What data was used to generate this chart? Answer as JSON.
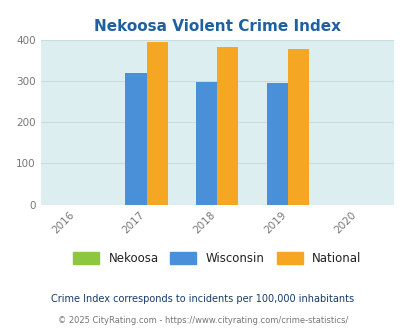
{
  "title": "Nekoosa Violent Crime Index",
  "title_color": "#2060a0",
  "years": [
    2016,
    2017,
    2018,
    2019,
    2020
  ],
  "bar_years": [
    2017,
    2018,
    2019
  ],
  "nekoosa": [
    0,
    0,
    0
  ],
  "wisconsin": [
    320,
    297,
    294
  ],
  "national": [
    395,
    382,
    378
  ],
  "nekoosa_color": "#8dc63f",
  "wisconsin_color": "#4a90d9",
  "national_color": "#f5a623",
  "plot_bg_color": "#ddeef0",
  "fig_bg_color": "#ffffff",
  "ylim": [
    0,
    400
  ],
  "yticks": [
    0,
    100,
    200,
    300,
    400
  ],
  "bar_width": 0.3,
  "legend_labels": [
    "Nekoosa",
    "Wisconsin",
    "National"
  ],
  "footnote1": "Crime Index corresponds to incidents per 100,000 inhabitants",
  "footnote2": "© 2025 CityRating.com - https://www.cityrating.com/crime-statistics/",
  "footnote1_color": "#1a3a6a",
  "footnote2_color": "#777777",
  "footnote2_url_color": "#4a90d9",
  "grid_color": "#c8dde0",
  "tick_color": "#777777",
  "legend_text_color": "#222222"
}
